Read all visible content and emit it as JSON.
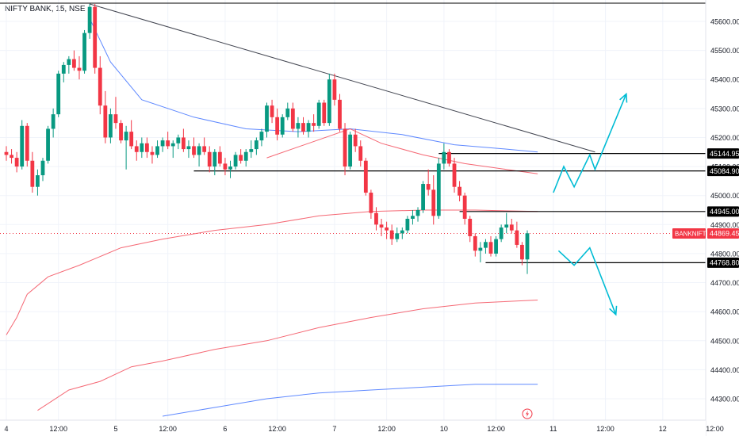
{
  "header": {
    "symbol_title": "NIFTY BANK, 15, NSE"
  },
  "colors": {
    "up": "#089981",
    "down": "#f23645",
    "grid": "#f0f3fa",
    "trendline": "#434651",
    "ma_red": "#f23645",
    "ma_blue": "#2962ff",
    "arrow": "#00bcd4",
    "price_tag_bg": "#f23645"
  },
  "badges": {
    "alert_icon": "lightning-bolt-icon"
  },
  "chart_data": {
    "type": "candlestick",
    "instrument": "NIFTY BANK",
    "timeframe": "15",
    "exchange": "NSE",
    "last_price_label": "BANKNIFTY",
    "last_price": "44869.45",
    "y_axis": {
      "ylim": [
        44240,
        45660
      ],
      "ticks": [
        45600,
        45500,
        45400,
        45300,
        45200,
        45100,
        45000,
        44900,
        44800,
        44700,
        44600,
        44500,
        44400,
        44300
      ],
      "tick_labels": [
        "45600.00",
        "45500.00",
        "45400.00",
        "45300.00",
        "45200.00",
        "45100.00",
        "45000.00",
        "44900.00",
        "44800.00",
        "44700.00",
        "44600.00",
        "44500.00",
        "44400.00",
        "44300.00"
      ]
    },
    "x_axis": {
      "tick_labels": [
        "4",
        "12:00",
        "5",
        "12:00",
        "6",
        "12:00",
        "7",
        "12:00",
        "10",
        "12:00",
        "11",
        "12:00",
        "12",
        "12:00"
      ],
      "tick_bars": [
        0,
        10,
        21,
        31,
        42,
        52,
        63,
        73,
        84,
        94,
        105,
        115,
        126,
        136
      ]
    },
    "levels": [
      {
        "price": 45144.95,
        "label": "45144.95",
        "from_bar": 83
      },
      {
        "price": 45084.9,
        "label": "45084.90",
        "from_bar": 36
      },
      {
        "price": 44945.0,
        "label": "44945.00",
        "from_bar": 87
      },
      {
        "price": 44768.8,
        "label": "44768.80",
        "from_bar": 92
      }
    ],
    "trendline": {
      "from": {
        "bar": 16,
        "price": 45660
      },
      "to": {
        "bar": 113,
        "price": 45150
      }
    },
    "candles": [
      [
        45150,
        45170,
        45120,
        45140
      ],
      [
        45140,
        45160,
        45110,
        45130
      ],
      [
        45130,
        45150,
        45080,
        45100
      ],
      [
        45100,
        45260,
        45090,
        45240
      ],
      [
        45240,
        45250,
        45100,
        45120
      ],
      [
        45120,
        45150,
        45010,
        45030
      ],
      [
        45030,
        45090,
        45000,
        45070
      ],
      [
        45070,
        45130,
        45050,
        45120
      ],
      [
        45120,
        45240,
        45110,
        45230
      ],
      [
        45230,
        45300,
        45200,
        45280
      ],
      [
        45280,
        45430,
        45270,
        45420
      ],
      [
        45420,
        45460,
        45390,
        45450
      ],
      [
        45450,
        45480,
        45420,
        45470
      ],
      [
        45470,
        45500,
        45430,
        45440
      ],
      [
        45440,
        45480,
        45400,
        45430
      ],
      [
        45430,
        45570,
        45420,
        45560
      ],
      [
        45560,
        45660,
        45540,
        45650
      ],
      [
        45650,
        45660,
        45420,
        45440
      ],
      [
        45440,
        45480,
        45280,
        45310
      ],
      [
        45310,
        45360,
        45180,
        45200
      ],
      [
        45200,
        45300,
        45180,
        45280
      ],
      [
        45280,
        45340,
        45230,
        45250
      ],
      [
        45250,
        45260,
        45180,
        45190
      ],
      [
        45190,
        45240,
        45090,
        45220
      ],
      [
        45220,
        45260,
        45160,
        45170
      ],
      [
        45170,
        45190,
        45120,
        45150
      ],
      [
        45150,
        45200,
        45130,
        45180
      ],
      [
        45180,
        45200,
        45130,
        45150
      ],
      [
        45150,
        45170,
        45110,
        45140
      ],
      [
        45140,
        45190,
        45130,
        45170
      ],
      [
        45170,
        45200,
        45150,
        45190
      ],
      [
        45190,
        45220,
        45160,
        45170
      ],
      [
        45170,
        45190,
        45130,
        45180
      ],
      [
        45180,
        45210,
        45160,
        45200
      ],
      [
        45200,
        45230,
        45150,
        45160
      ],
      [
        45160,
        45190,
        45130,
        45170
      ],
      [
        45170,
        45200,
        45130,
        45140
      ],
      [
        45140,
        45180,
        45100,
        45170
      ],
      [
        45170,
        45200,
        45140,
        45150
      ],
      [
        45150,
        45170,
        45080,
        45100
      ],
      [
        45100,
        45160,
        45070,
        45150
      ],
      [
        45150,
        45170,
        45100,
        45110
      ],
      [
        45110,
        45130,
        45070,
        45090
      ],
      [
        45090,
        45120,
        45060,
        45100
      ],
      [
        45100,
        45150,
        45090,
        45140
      ],
      [
        45140,
        45160,
        45110,
        45120
      ],
      [
        45120,
        45160,
        45100,
        45150
      ],
      [
        45150,
        45190,
        45130,
        45160
      ],
      [
        45160,
        45200,
        45140,
        45190
      ],
      [
        45190,
        45230,
        45170,
        45220
      ],
      [
        45220,
        45320,
        45200,
        45310
      ],
      [
        45310,
        45330,
        45250,
        45270
      ],
      [
        45270,
        45300,
        45190,
        45210
      ],
      [
        45210,
        45280,
        45200,
        45270
      ],
      [
        45270,
        45320,
        45260,
        45300
      ],
      [
        45300,
        45320,
        45220,
        45230
      ],
      [
        45230,
        45270,
        45200,
        45250
      ],
      [
        45250,
        45270,
        45210,
        45220
      ],
      [
        45220,
        45260,
        45200,
        45250
      ],
      [
        45250,
        45280,
        45220,
        45240
      ],
      [
        45240,
        45330,
        45230,
        45320
      ],
      [
        45320,
        45330,
        45240,
        45250
      ],
      [
        45250,
        45420,
        45240,
        45400
      ],
      [
        45400,
        45420,
        45310,
        45330
      ],
      [
        45330,
        45350,
        45220,
        45230
      ],
      [
        45230,
        45250,
        45070,
        45100
      ],
      [
        45100,
        45220,
        45090,
        45210
      ],
      [
        45210,
        45230,
        45150,
        45170
      ],
      [
        45170,
        45190,
        45100,
        45120
      ],
      [
        45120,
        45130,
        45000,
        45010
      ],
      [
        45010,
        45020,
        44920,
        44940
      ],
      [
        44940,
        44960,
        44880,
        44900
      ],
      [
        44900,
        44920,
        44860,
        44890
      ],
      [
        44890,
        44910,
        44850,
        44880
      ],
      [
        44880,
        44900,
        44830,
        44850
      ],
      [
        44850,
        44890,
        44840,
        44870
      ],
      [
        44870,
        44890,
        44850,
        44880
      ],
      [
        44880,
        44930,
        44870,
        44920
      ],
      [
        44920,
        44950,
        44900,
        44930
      ],
      [
        44930,
        44960,
        44910,
        44950
      ],
      [
        44950,
        45050,
        44940,
        45040
      ],
      [
        45040,
        45090,
        45000,
        45020
      ],
      [
        45020,
        45070,
        44900,
        44930
      ],
      [
        44930,
        45130,
        44920,
        45110
      ],
      [
        45110,
        45180,
        45090,
        45150
      ],
      [
        45150,
        45160,
        45100,
        45110
      ],
      [
        45110,
        45130,
        45010,
        45030
      ],
      [
        45030,
        45050,
        44980,
        45000
      ],
      [
        45000,
        45010,
        44900,
        44920
      ],
      [
        44920,
        44930,
        44840,
        44860
      ],
      [
        44860,
        44870,
        44790,
        44810
      ],
      [
        44810,
        44840,
        44770,
        44820
      ],
      [
        44820,
        44850,
        44800,
        44840
      ],
      [
        44840,
        44860,
        44790,
        44800
      ],
      [
        44800,
        44860,
        44790,
        44850
      ],
      [
        44850,
        44900,
        44840,
        44890
      ],
      [
        44890,
        44940,
        44870,
        44900
      ],
      [
        44900,
        44920,
        44870,
        44880
      ],
      [
        44880,
        44910,
        44820,
        44830
      ],
      [
        44830,
        44840,
        44760,
        44780
      ],
      [
        44780,
        44880,
        44730,
        44870
      ]
    ],
    "moving_averages": [
      {
        "color": "blue",
        "points": [
          [
            16,
            45610
          ],
          [
            20,
            45460
          ],
          [
            26,
            45330
          ],
          [
            36,
            45270
          ],
          [
            46,
            45230
          ],
          [
            56,
            45220
          ],
          [
            66,
            45230
          ],
          [
            76,
            45210
          ],
          [
            86,
            45175
          ],
          [
            96,
            45160
          ],
          [
            102,
            45150
          ]
        ]
      },
      {
        "color": "red",
        "points": [
          [
            50,
            45130
          ],
          [
            58,
            45180
          ],
          [
            66,
            45230
          ],
          [
            72,
            45180
          ],
          [
            80,
            45140
          ],
          [
            88,
            45110
          ],
          [
            96,
            45090
          ],
          [
            102,
            45075
          ]
        ]
      },
      {
        "color": "red",
        "points": [
          [
            0,
            44520
          ],
          [
            2,
            44580
          ],
          [
            4,
            44660
          ],
          [
            8,
            44720
          ],
          [
            14,
            44760
          ],
          [
            22,
            44820
          ],
          [
            30,
            44850
          ],
          [
            40,
            44880
          ],
          [
            50,
            44900
          ],
          [
            60,
            44930
          ],
          [
            70,
            44945
          ],
          [
            80,
            44950
          ],
          [
            90,
            44950
          ],
          [
            102,
            44945
          ]
        ]
      },
      {
        "color": "red",
        "points": [
          [
            6,
            44260
          ],
          [
            12,
            44330
          ],
          [
            18,
            44360
          ],
          [
            24,
            44410
          ],
          [
            30,
            44430
          ],
          [
            40,
            44470
          ],
          [
            50,
            44500
          ],
          [
            60,
            44545
          ],
          [
            70,
            44580
          ],
          [
            80,
            44610
          ],
          [
            90,
            44630
          ],
          [
            102,
            44640
          ]
        ]
      },
      {
        "color": "blue",
        "points": [
          [
            30,
            44240
          ],
          [
            40,
            44270
          ],
          [
            50,
            44300
          ],
          [
            60,
            44320
          ],
          [
            70,
            44330
          ],
          [
            80,
            44340
          ],
          [
            90,
            44350
          ],
          [
            102,
            44350
          ]
        ]
      }
    ],
    "projections": [
      {
        "direction": "up",
        "points": [
          [
            105,
            45010
          ],
          [
            107,
            45100
          ],
          [
            109,
            45030
          ],
          [
            112,
            45140
          ],
          [
            113,
            45090
          ],
          [
            119,
            45350
          ]
        ]
      },
      {
        "direction": "down",
        "points": [
          [
            106,
            44810
          ],
          [
            109,
            44760
          ],
          [
            112,
            44820
          ],
          [
            117,
            44590
          ]
        ]
      }
    ]
  }
}
